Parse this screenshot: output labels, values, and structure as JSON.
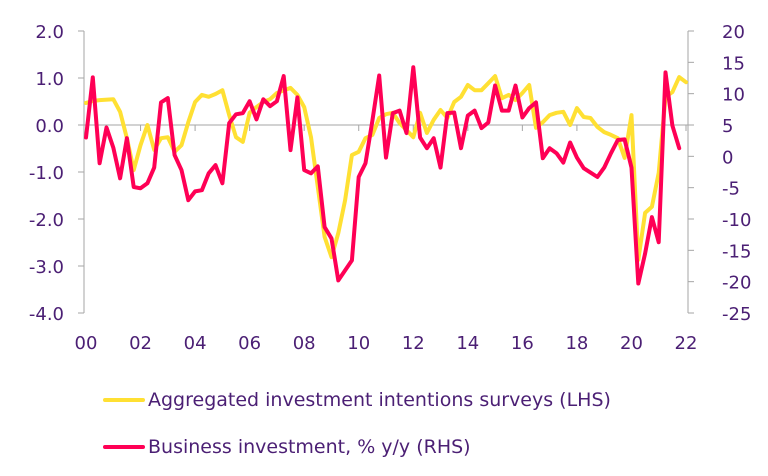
{
  "chart_data": {
    "type": "line",
    "title": "",
    "xlabel": "",
    "ylabel_left": "",
    "ylabel_right": "",
    "x_ticks": [
      "00",
      "02",
      "04",
      "06",
      "08",
      "10",
      "12",
      "14",
      "16",
      "18",
      "20",
      "22"
    ],
    "x_tick_years": [
      2000,
      2002,
      2004,
      2006,
      2008,
      2010,
      2012,
      2014,
      2016,
      2018,
      2020,
      2022
    ],
    "xlim": [
      2000,
      2022
    ],
    "y_left": {
      "ticks": [
        "2.0",
        "1.0",
        "0.0",
        "-1.0",
        "-2.0",
        "-3.0",
        "-4.0"
      ],
      "tick_values": [
        2,
        1,
        0,
        -1,
        -2,
        -3,
        -4
      ],
      "ylim": [
        -4,
        2
      ]
    },
    "y_right": {
      "ticks": [
        "20",
        "15",
        "10",
        "5",
        "0",
        "-5",
        "-10",
        "-15",
        "-20",
        "-25"
      ],
      "tick_values": [
        20,
        15,
        10,
        5,
        0,
        -5,
        -10,
        -15,
        -20,
        -25
      ],
      "ylim": [
        -25,
        20
      ]
    },
    "grid": false,
    "zero_line": "left axis 0.0",
    "legend_position": "bottom-left",
    "series": [
      {
        "name": "Aggregated investment intentions surveys (LHS)",
        "axis": "left",
        "color": "#ffe033",
        "points": [
          [
            2000.0,
            0.47
          ],
          [
            2000.25,
            0.51
          ],
          [
            2000.5,
            0.53
          ],
          [
            2001.0,
            0.55
          ],
          [
            2001.25,
            0.28
          ],
          [
            2001.5,
            -0.28
          ],
          [
            2001.75,
            -0.96
          ],
          [
            2002.0,
            -0.43
          ],
          [
            2002.25,
            0.0
          ],
          [
            2002.5,
            -0.53
          ],
          [
            2002.75,
            -0.28
          ],
          [
            2003.0,
            -0.26
          ],
          [
            2003.25,
            -0.57
          ],
          [
            2003.5,
            -0.43
          ],
          [
            2003.75,
            0.06
          ],
          [
            2004.0,
            0.49
          ],
          [
            2004.25,
            0.64
          ],
          [
            2004.5,
            0.6
          ],
          [
            2004.75,
            0.66
          ],
          [
            2005.0,
            0.74
          ],
          [
            2005.25,
            0.21
          ],
          [
            2005.5,
            -0.26
          ],
          [
            2005.75,
            -0.36
          ],
          [
            2006.0,
            0.26
          ],
          [
            2006.25,
            0.38
          ],
          [
            2006.5,
            0.49
          ],
          [
            2006.75,
            0.55
          ],
          [
            2007.0,
            0.68
          ],
          [
            2007.5,
            0.79
          ],
          [
            2007.75,
            0.64
          ],
          [
            2008.0,
            0.38
          ],
          [
            2008.25,
            -0.26
          ],
          [
            2008.5,
            -1.32
          ],
          [
            2008.75,
            -2.38
          ],
          [
            2009.0,
            -2.81
          ],
          [
            2009.25,
            -2.3
          ],
          [
            2009.5,
            -1.6
          ],
          [
            2009.75,
            -0.64
          ],
          [
            2010.0,
            -0.57
          ],
          [
            2010.25,
            -0.28
          ],
          [
            2010.5,
            -0.21
          ],
          [
            2010.75,
            0.15
          ],
          [
            2011.0,
            0.23
          ],
          [
            2011.25,
            0.26
          ],
          [
            2011.5,
            0.04
          ],
          [
            2011.75,
            -0.11
          ],
          [
            2012.0,
            -0.26
          ],
          [
            2012.25,
            0.26
          ],
          [
            2012.5,
            -0.17
          ],
          [
            2012.75,
            0.11
          ],
          [
            2013.0,
            0.32
          ],
          [
            2013.25,
            0.15
          ],
          [
            2013.5,
            0.49
          ],
          [
            2013.75,
            0.6
          ],
          [
            2014.0,
            0.85
          ],
          [
            2014.25,
            0.74
          ],
          [
            2014.5,
            0.74
          ],
          [
            2014.75,
            0.89
          ],
          [
            2015.0,
            1.04
          ],
          [
            2015.25,
            0.57
          ],
          [
            2015.5,
            0.64
          ],
          [
            2015.75,
            0.53
          ],
          [
            2016.0,
            0.68
          ],
          [
            2016.25,
            0.85
          ],
          [
            2016.5,
            -0.06
          ],
          [
            2016.75,
            0.06
          ],
          [
            2017.0,
            0.21
          ],
          [
            2017.25,
            0.26
          ],
          [
            2017.5,
            0.28
          ],
          [
            2017.75,
            0.0
          ],
          [
            2018.0,
            0.36
          ],
          [
            2018.25,
            0.17
          ],
          [
            2018.5,
            0.15
          ],
          [
            2018.75,
            -0.04
          ],
          [
            2019.0,
            -0.15
          ],
          [
            2019.25,
            -0.21
          ],
          [
            2019.5,
            -0.28
          ],
          [
            2019.75,
            -0.7
          ],
          [
            2020.0,
            0.21
          ],
          [
            2020.25,
            -2.87
          ],
          [
            2020.5,
            -1.87
          ],
          [
            2020.75,
            -1.74
          ],
          [
            2021.0,
            -1.02
          ],
          [
            2021.25,
            0.6
          ],
          [
            2021.5,
            0.7
          ],
          [
            2021.75,
            1.02
          ],
          [
            2022.0,
            0.91
          ]
        ]
      },
      {
        "name": "Business investment, % y/y (RHS)",
        "axis": "right",
        "color": "#ff0055",
        "points": [
          [
            2000.0,
            3.0
          ],
          [
            2000.25,
            12.6
          ],
          [
            2000.5,
            -1.1
          ],
          [
            2000.75,
            4.6
          ],
          [
            2001.0,
            1.4
          ],
          [
            2001.25,
            -3.5
          ],
          [
            2001.5,
            2.9
          ],
          [
            2001.75,
            -4.9
          ],
          [
            2002.0,
            -5.1
          ],
          [
            2002.25,
            -4.3
          ],
          [
            2002.5,
            -1.8
          ],
          [
            2002.75,
            8.6
          ],
          [
            2003.0,
            9.3
          ],
          [
            2003.25,
            0.2
          ],
          [
            2003.5,
            -2.2
          ],
          [
            2003.75,
            -7.0
          ],
          [
            2004.0,
            -5.6
          ],
          [
            2004.25,
            -5.4
          ],
          [
            2004.5,
            -2.7
          ],
          [
            2004.75,
            -1.4
          ],
          [
            2005.0,
            -4.3
          ],
          [
            2005.25,
            5.3
          ],
          [
            2005.5,
            6.7
          ],
          [
            2005.75,
            6.9
          ],
          [
            2006.0,
            8.8
          ],
          [
            2006.25,
            5.9
          ],
          [
            2006.5,
            9.1
          ],
          [
            2006.75,
            8.0
          ],
          [
            2007.0,
            8.8
          ],
          [
            2007.25,
            12.8
          ],
          [
            2007.5,
            1.0
          ],
          [
            2007.75,
            9.4
          ],
          [
            2008.0,
            -2.2
          ],
          [
            2008.25,
            -2.7
          ],
          [
            2008.5,
            -1.6
          ],
          [
            2008.75,
            -11.3
          ],
          [
            2009.0,
            -13.1
          ],
          [
            2009.25,
            -19.8
          ],
          [
            2009.5,
            -18.2
          ],
          [
            2009.75,
            -16.6
          ],
          [
            2010.0,
            -3.3
          ],
          [
            2010.25,
            -1.1
          ],
          [
            2010.5,
            5.7
          ],
          [
            2010.75,
            12.9
          ],
          [
            2011.0,
            -0.2
          ],
          [
            2011.25,
            6.9
          ],
          [
            2011.5,
            7.3
          ],
          [
            2011.75,
            3.7
          ],
          [
            2012.0,
            14.2
          ],
          [
            2012.25,
            3.0
          ],
          [
            2012.5,
            1.3
          ],
          [
            2012.75,
            2.9
          ],
          [
            2013.0,
            -1.8
          ],
          [
            2013.25,
            6.9
          ],
          [
            2013.5,
            7.0
          ],
          [
            2013.75,
            1.3
          ],
          [
            2014.0,
            6.5
          ],
          [
            2014.25,
            7.3
          ],
          [
            2014.5,
            4.5
          ],
          [
            2014.75,
            5.4
          ],
          [
            2015.0,
            11.3
          ],
          [
            2015.25,
            7.3
          ],
          [
            2015.5,
            7.3
          ],
          [
            2015.75,
            11.3
          ],
          [
            2016.0,
            6.2
          ],
          [
            2016.25,
            7.7
          ],
          [
            2016.5,
            8.6
          ],
          [
            2016.75,
            -0.3
          ],
          [
            2017.0,
            1.3
          ],
          [
            2017.25,
            0.5
          ],
          [
            2017.5,
            -1.0
          ],
          [
            2017.75,
            2.2
          ],
          [
            2018.0,
            -0.2
          ],
          [
            2018.25,
            -1.9
          ],
          [
            2018.5,
            -2.6
          ],
          [
            2018.75,
            -3.3
          ],
          [
            2019.0,
            -1.8
          ],
          [
            2019.25,
            0.5
          ],
          [
            2019.5,
            2.6
          ],
          [
            2019.75,
            2.7
          ],
          [
            2020.0,
            -1.8
          ],
          [
            2020.25,
            -20.3
          ],
          [
            2020.5,
            -15.5
          ],
          [
            2020.75,
            -9.7
          ],
          [
            2021.0,
            -13.7
          ],
          [
            2021.25,
            13.4
          ],
          [
            2021.5,
            4.9
          ],
          [
            2021.75,
            1.3
          ]
        ]
      }
    ]
  },
  "legend": {
    "items": [
      {
        "label": "Aggregated investment intentions surveys (LHS)",
        "color": "#ffe033"
      },
      {
        "label": "Business investment, % y/y (RHS)",
        "color": "#ff0055"
      }
    ]
  },
  "colors": {
    "text": "#4b1f74",
    "axis": "#a6a6a6"
  }
}
